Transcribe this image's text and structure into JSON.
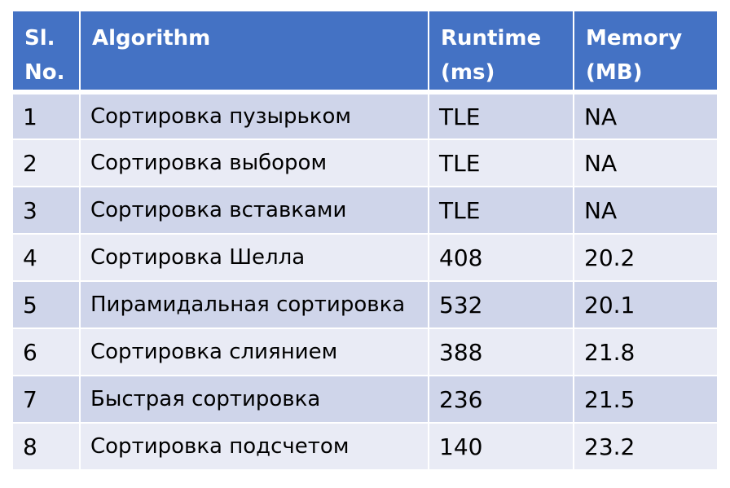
{
  "table": {
    "headers": [
      "Sl.\nNo.",
      "Algorithm",
      "Runtime\n(ms)",
      "Memory\n(MB)"
    ],
    "rows": [
      [
        "1",
        "Сортировка пузырьком",
        "TLE",
        "NA"
      ],
      [
        "2",
        "Сортировка выбором",
        "TLE",
        "NA"
      ],
      [
        "3",
        "Сортировка вставками",
        "TLE",
        "NA"
      ],
      [
        "4",
        "Сортировка Шелла",
        "408",
        "20.2"
      ],
      [
        "5",
        "Пирамидальная сортировка",
        "532",
        "20.1"
      ],
      [
        "6",
        "Сортировка слиянием",
        "388",
        "21.8"
      ],
      [
        "7",
        "Быстрая сортировка",
        "236",
        "21.5"
      ],
      [
        "8",
        "Сортировка подсчетом",
        "140",
        "23.2"
      ]
    ]
  },
  "colors": {
    "header_bg": "#4472c4",
    "row_odd_bg": "#cfd5ea",
    "row_even_bg": "#e9ebf5"
  }
}
